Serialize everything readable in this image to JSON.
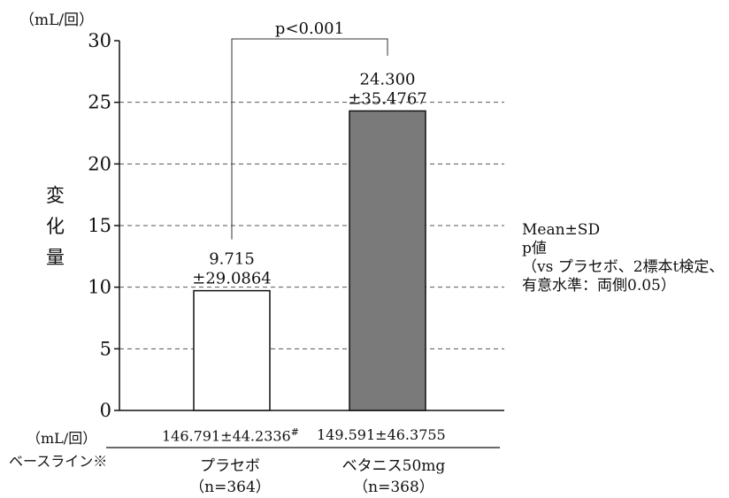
{
  "chart_data": {
    "type": "bar",
    "unit_label": "（mL/回）",
    "ylabel_chars": [
      "変",
      "化",
      "量"
    ],
    "ylim": [
      0,
      30
    ],
    "yticks": [
      0,
      5,
      10,
      15,
      20,
      25,
      30
    ],
    "grid": "dashed-horizontal",
    "categories": [
      "プラセボ",
      "ベタニス50mg"
    ],
    "n_labels": [
      "（n=364）",
      "（n=368）"
    ],
    "values": [
      9.715,
      24.3
    ],
    "value_labels": [
      "9.715",
      "24.300"
    ],
    "sd_labels": [
      "±29.0864",
      "±35.4767"
    ],
    "bar_colors": [
      "#ffffff",
      "#7a7a7a"
    ],
    "significance": "p<0.001",
    "baseline_title": "ベースライン※",
    "baseline_unit": "（mL/回）",
    "baseline_values": [
      "146.791±44.2336",
      "149.591±46.3755"
    ],
    "baseline_mark": "#",
    "notes": [
      "Mean±SD",
      "p値",
      "（vs プラセボ、2標本t検定、",
      "有意水準：両側0.05）"
    ]
  }
}
